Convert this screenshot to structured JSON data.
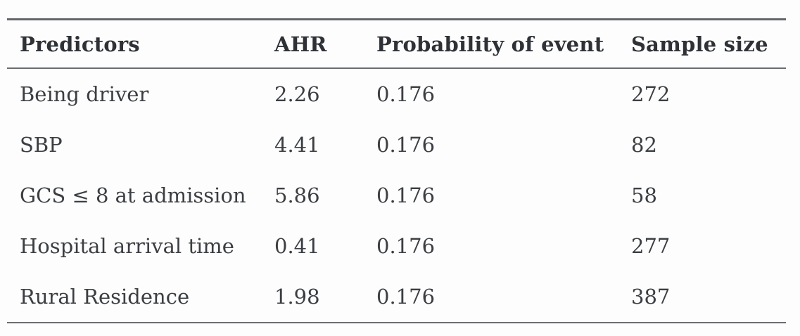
{
  "table": {
    "columns": [
      {
        "key": "predictor",
        "label": "Predictors"
      },
      {
        "key": "ahr",
        "label": "AHR"
      },
      {
        "key": "probability",
        "label": "Probability of event"
      },
      {
        "key": "sample_size",
        "label": "Sample size"
      }
    ],
    "rows": [
      {
        "predictor": "Being driver",
        "ahr": "2.26",
        "probability": "0.176",
        "sample_size": "272"
      },
      {
        "predictor": "SBP",
        "ahr": "4.41",
        "probability": "0.176",
        "sample_size": "82"
      },
      {
        "predictor": "GCS ≤ 8 at admission",
        "ahr": "5.86",
        "probability": "0.176",
        "sample_size": "58"
      },
      {
        "predictor": "Hospital arrival time",
        "ahr": "0.41",
        "probability": "0.176",
        "sample_size": "277"
      },
      {
        "predictor": "Rural Residence",
        "ahr": "1.98",
        "probability": "0.176",
        "sample_size": "387"
      }
    ]
  },
  "colors": {
    "background": "#fdfdfd",
    "text_body": "#3b3e42",
    "text_header": "#2e3136",
    "rule": "#6b6d70"
  },
  "chart_data": {
    "type": "table",
    "title": "",
    "columns": [
      "Predictors",
      "AHR",
      "Probability of event",
      "Sample size"
    ],
    "rows": [
      [
        "Being driver",
        2.26,
        0.176,
        272
      ],
      [
        "SBP",
        4.41,
        0.176,
        82
      ],
      [
        "GCS ≤ 8 at admission",
        5.86,
        0.176,
        58
      ],
      [
        "Hospital arrival time",
        0.41,
        0.176,
        277
      ],
      [
        "Rural Residence",
        1.98,
        0.176,
        387
      ]
    ]
  }
}
